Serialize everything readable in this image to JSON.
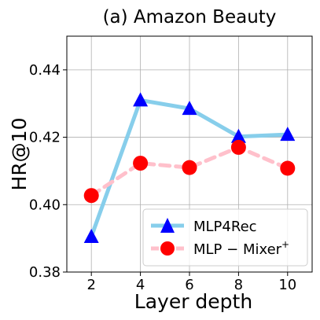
{
  "chart_data": {
    "type": "line",
    "title": "(a) Amazon Beauty",
    "xlabel": "Layer depth",
    "ylabel": "HR@10",
    "x": [
      2,
      4,
      6,
      8,
      10
    ],
    "xticks": [
      "2",
      "4",
      "6",
      "8",
      "10"
    ],
    "xlim": [
      1,
      11
    ],
    "ylim": [
      0.38,
      0.45
    ],
    "yticks": [
      0.38,
      0.4,
      0.42,
      0.44
    ],
    "ytick_labels": [
      "0.38",
      "0.40",
      "0.42",
      "0.44"
    ],
    "grid": true,
    "legend_position": "lower-right",
    "series": [
      {
        "name": "MLP4Rec",
        "values": [
          0.3905,
          0.431,
          0.4285,
          0.4202,
          0.4208
        ],
        "color": "#87ceeb",
        "marker": "triangle",
        "marker_color": "#0000ff",
        "line_style": "solid"
      },
      {
        "name_main": "MLP − Mixer",
        "name_sup": "+",
        "values": [
          0.4027,
          0.4123,
          0.411,
          0.417,
          0.4108
        ],
        "color": "#ffc0cb",
        "marker": "circle",
        "marker_color": "#ff0000",
        "line_style": "dashed"
      }
    ]
  }
}
